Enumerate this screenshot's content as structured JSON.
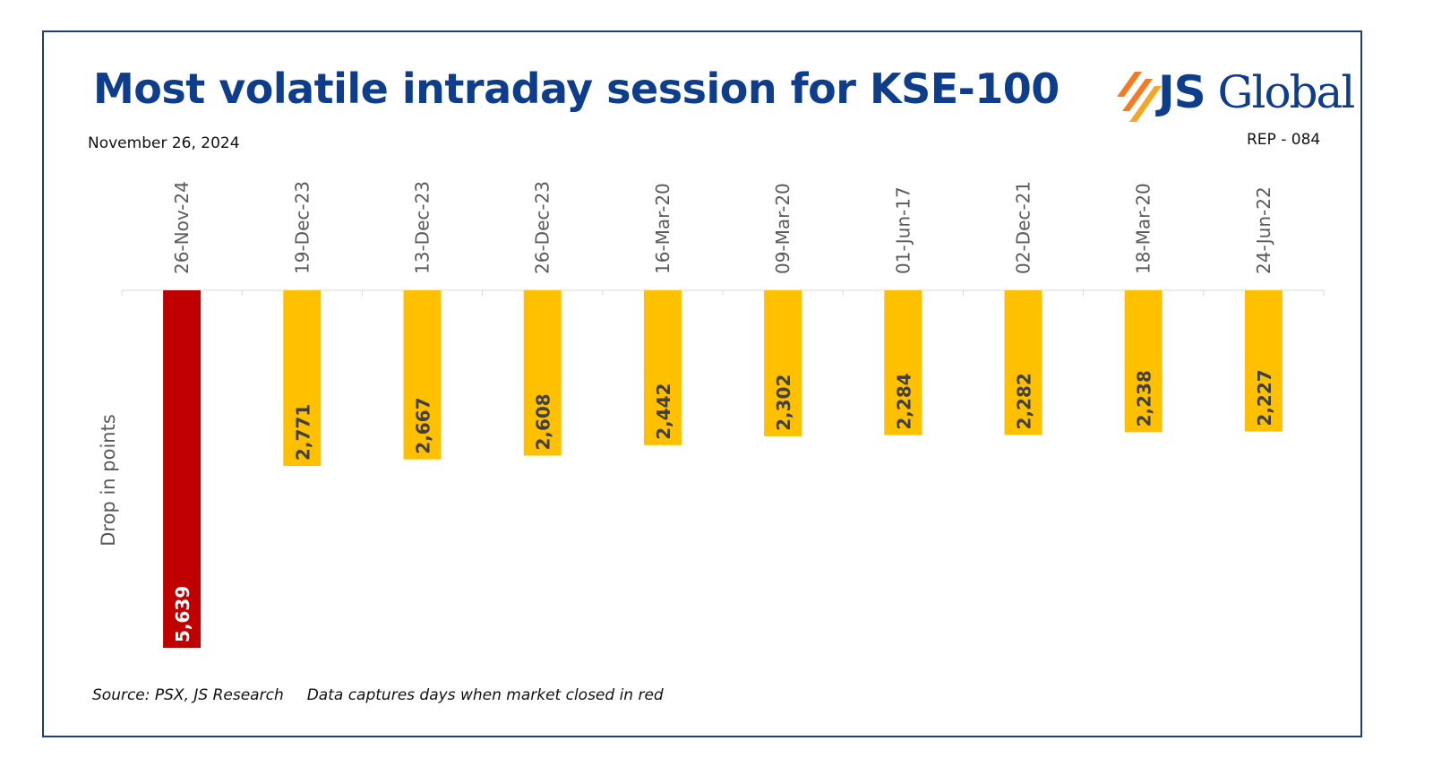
{
  "header": {
    "title": "Most volatile intraday session for KSE-100",
    "date": "November 26, 2024",
    "report_code": "REP - 084",
    "logo_text_bold": "JS",
    "logo_text": " Global"
  },
  "footer": {
    "source": "Source: PSX, JS Research",
    "note": "Data captures days when market closed in red"
  },
  "colors": {
    "highlight": "#c00000",
    "bar": "#ffc000",
    "title": "#0e3d8c",
    "logo_accent": "#f47b20"
  },
  "chart_data": {
    "type": "bar",
    "orientation": "vertical-downward",
    "categories": [
      "26-Nov-24",
      "19-Dec-23",
      "13-Dec-23",
      "26-Dec-23",
      "16-Mar-20",
      "09-Mar-20",
      "01-Jun-17",
      "02-Dec-21",
      "18-Mar-20",
      "24-Jun-22"
    ],
    "values": [
      5639,
      2771,
      2667,
      2608,
      2442,
      2302,
      2284,
      2282,
      2238,
      2227
    ],
    "data_labels": [
      "5,639",
      "2,771",
      "2,667",
      "2,608",
      "2,442",
      "2,302",
      "2,284",
      "2,282",
      "2,238",
      "2,227"
    ],
    "highlight_index": 0,
    "ylabel": "Drop in points",
    "xlabel": "",
    "ylim": [
      0,
      5639
    ],
    "grid": false,
    "legend": "none"
  }
}
